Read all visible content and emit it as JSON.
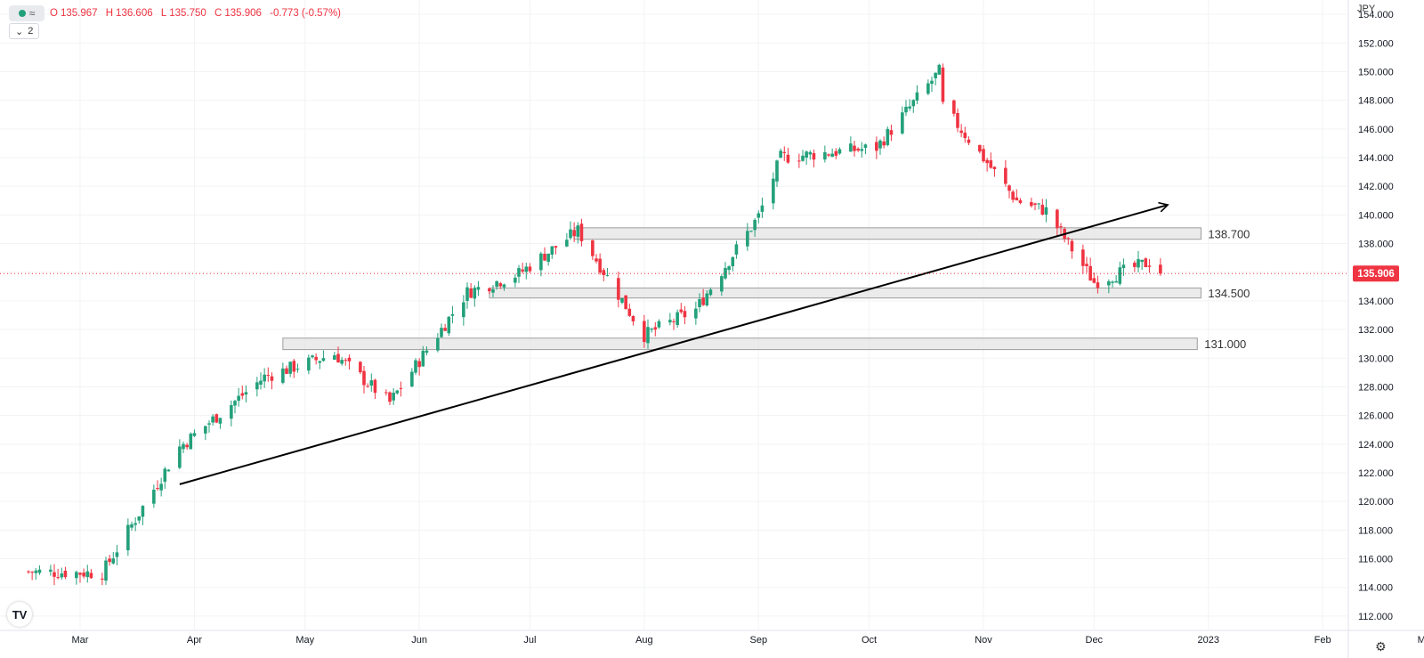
{
  "legend": {
    "toggle_icon": "eye-wave-icon",
    "open_label": "O",
    "open": "135.967",
    "high_label": "H",
    "high": "136.606",
    "low_label": "L",
    "low": "135.750",
    "close_label": "C",
    "close": "135.906",
    "change": "-0.773 (-0.57%)",
    "indicator_count": "2",
    "color_down": "#ef3442",
    "color_up": "#22a07a"
  },
  "axis": {
    "currency": "JPY",
    "current_price_label": "135.906"
  },
  "chart_data": {
    "type": "candlestick",
    "currency": "JPY",
    "ylim": [
      111,
      155
    ],
    "yticks": [
      "112.000",
      "114.000",
      "116.000",
      "118.000",
      "120.000",
      "122.000",
      "124.000",
      "126.000",
      "128.000",
      "130.000",
      "132.000",
      "134.000",
      "136.000",
      "138.000",
      "140.000",
      "142.000",
      "144.000",
      "146.000",
      "148.000",
      "150.000",
      "152.000",
      "154.000"
    ],
    "xticks": [
      "Mar",
      "Apr",
      "May",
      "Jun",
      "Jul",
      "Aug",
      "Sep",
      "Oct",
      "Nov",
      "Dec",
      "2023",
      "Feb",
      "Mar"
    ],
    "current_price": 135.906,
    "grid": true,
    "levels": [
      {
        "label": "138.700",
        "low": 138.3,
        "high": 139.1,
        "start": "2022-07-13",
        "end": "2022-12-30"
      },
      {
        "label": "134.500",
        "low": 134.2,
        "high": 134.9,
        "start": "2022-06-20",
        "end": "2022-12-30"
      },
      {
        "label": "131.000",
        "low": 130.6,
        "high": 131.4,
        "start": "2022-04-25",
        "end": "2022-12-29"
      }
    ],
    "trendline": {
      "start_date": "2022-03-28",
      "start_price": 121.2,
      "end_date": "2022-12-21",
      "end_price": 140.7,
      "arrow": true
    },
    "key_closes": [
      {
        "date": "2022-02-15",
        "close": 115.1
      },
      {
        "date": "2022-03-07",
        "close": 115.0
      },
      {
        "date": "2022-03-28",
        "close": 123.8
      },
      {
        "date": "2022-04-20",
        "close": 128.7
      },
      {
        "date": "2022-05-09",
        "close": 130.3
      },
      {
        "date": "2022-05-24",
        "close": 126.9
      },
      {
        "date": "2022-06-14",
        "close": 134.6
      },
      {
        "date": "2022-06-28",
        "close": 135.9
      },
      {
        "date": "2022-07-14",
        "close": 138.9
      },
      {
        "date": "2022-08-01",
        "close": 131.6
      },
      {
        "date": "2022-08-15",
        "close": 133.4
      },
      {
        "date": "2022-09-01",
        "close": 139.9
      },
      {
        "date": "2022-09-07",
        "close": 144.0
      },
      {
        "date": "2022-10-03",
        "close": 144.7
      },
      {
        "date": "2022-10-20",
        "close": 150.0
      },
      {
        "date": "2022-10-21",
        "close": 147.6
      },
      {
        "date": "2022-11-10",
        "close": 141.0
      },
      {
        "date": "2022-11-18",
        "close": 140.3
      },
      {
        "date": "2022-12-01",
        "close": 135.3
      },
      {
        "date": "2022-12-16",
        "close": 136.7
      },
      {
        "date": "2022-12-19",
        "close": 135.906
      }
    ]
  }
}
